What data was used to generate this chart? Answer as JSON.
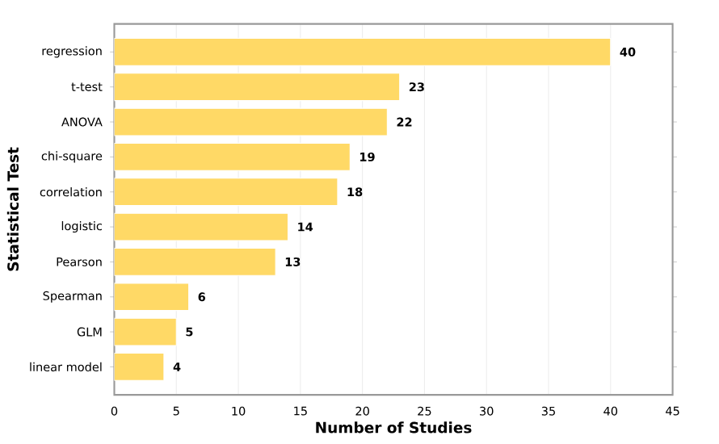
{
  "chart_data": {
    "type": "bar",
    "orientation": "horizontal",
    "xlabel": "Number of Studies",
    "ylabel": "Statistical Test",
    "categories": [
      "regression",
      "t-test",
      "ANOVA",
      "chi-square",
      "correlation",
      "logistic",
      "Pearson",
      "Spearman",
      "GLM",
      "linear model"
    ],
    "values": [
      40,
      23,
      22,
      19,
      18,
      14,
      13,
      6,
      5,
      4
    ],
    "color": "#ffd966",
    "xlim": [
      0,
      45
    ],
    "xticks": [
      0,
      5,
      10,
      15,
      20,
      25,
      30,
      35,
      40,
      45
    ],
    "grid": "x",
    "data_labels": true
  }
}
